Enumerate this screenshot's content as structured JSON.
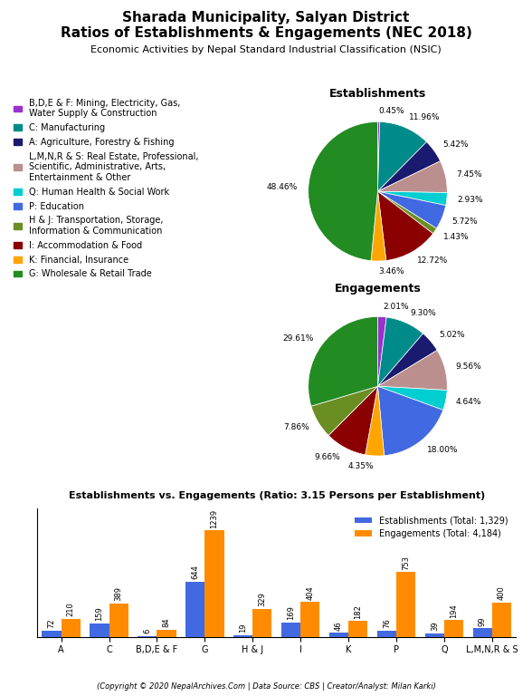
{
  "title": "Sharada Municipality, Salyan District\nRatios of Establishments & Engagements (NEC 2018)",
  "subtitle": "Economic Activities by Nepal Standard Industrial Classification (NSIC)",
  "annotations": [
    "(Copyright © 2020 NepalArchives.Com | Data Source: CBS | Creator/Analyst: Milan Karki)"
  ],
  "chart_data": [
    {
      "type": "pie",
      "title": "Establishments",
      "categories": [
        "B,D,E & F: Mining, Electricity, Gas,\nWater Supply & Construction",
        "C: Manufacturing",
        "A: Agriculture, Forestry & Fishing",
        "L,M,N,R & S: Real Estate, Professional,\nScientific, Administrative, Arts,\nEntertainment & Other",
        "Q: Human Health & Social Work",
        "P: Education",
        "H & J: Transportation, Storage,\nInformation & Communication",
        "I: Accommodation & Food",
        "K: Financial, Insurance",
        "G: Wholesale & Retail Trade"
      ],
      "values": [
        0.45,
        11.96,
        5.42,
        7.45,
        2.93,
        5.72,
        1.43,
        12.72,
        3.46,
        48.46
      ],
      "value_labels": [
        "0.45%",
        "11.96%",
        "5.42%",
        "7.45%",
        "2.93%",
        "5.72%",
        "1.43%",
        "12.72%",
        "3.46%",
        "48.46%"
      ],
      "colors": [
        "#9932CC",
        "#008B8B",
        "#1a1a6e",
        "#BC8F8F",
        "#00CED1",
        "#4169E1",
        "#6B8E23",
        "#8B0000",
        "#FFA500",
        "#228B22"
      ],
      "data_labels": true,
      "legend": "upper left"
    },
    {
      "type": "pie",
      "title": "Engagements",
      "categories": [
        "B,D,E & F: Mining, Electricity, Gas,\nWater Supply & Construction",
        "C: Manufacturing",
        "A: Agriculture, Forestry & Fishing",
        "L,M,N,R & S: Real Estate, Professional,\nScientific, Administrative, Arts,\nEntertainment & Other",
        "Q: Human Health & Social Work",
        "P: Education",
        "K: Financial, Insurance",
        "I: Accommodation & Food",
        "H & J: Transportation, Storage,\nInformation & Communication",
        "G: Wholesale & Retail Trade"
      ],
      "values": [
        2.01,
        9.3,
        5.02,
        9.56,
        4.64,
        18.0,
        4.35,
        9.66,
        7.86,
        29.61
      ],
      "value_labels": [
        "2.01%",
        "9.30%",
        "5.02%",
        "9.56%",
        "4.64%",
        "18.00%",
        "4.35%",
        "9.66%",
        "7.86%",
        "29.61%"
      ],
      "colors": [
        "#9932CC",
        "#008B8B",
        "#1a1a6e",
        "#BC8F8F",
        "#00CED1",
        "#4169E1",
        "#FFA500",
        "#8B0000",
        "#6B8E23",
        "#228B22"
      ],
      "data_labels": true
    },
    {
      "type": "bar",
      "title": "Establishments vs. Engagements (Ratio: 3.15 Persons per Establishment)",
      "categories": [
        "A",
        "C",
        "B,D,E & F",
        "G",
        "H & J",
        "I",
        "K",
        "P",
        "Q",
        "L,M,N,R & S"
      ],
      "series": [
        {
          "name": "Establishments (Total: 1,329)",
          "color": "#4169E1",
          "values": [
            72,
            159,
            6,
            644,
            19,
            169,
            46,
            76,
            39,
            99
          ]
        },
        {
          "name": "Engagements (Total: 4,184)",
          "color": "#FF8C00",
          "values": [
            210,
            389,
            84,
            1239,
            329,
            404,
            182,
            753,
            194,
            400
          ]
        }
      ],
      "ylim": [
        0,
        1500
      ],
      "tick_labels": "x",
      "data_labels": true,
      "legend": "upper right"
    }
  ]
}
